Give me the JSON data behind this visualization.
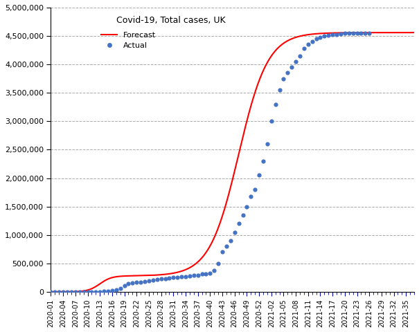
{
  "title": "Covid-19, Total cases, UK",
  "forecast_color": "#FF0000",
  "actual_color": "#4472C4",
  "background_color": "#FFFFFF",
  "grid_color": "#AAAAAA",
  "ylim": [
    0,
    5000000
  ],
  "yticks": [
    0,
    500000,
    1000000,
    1500000,
    2000000,
    2500000,
    3000000,
    3500000,
    4000000,
    4500000,
    5000000
  ],
  "xtick_labels": [
    "2020-01",
    "2020-04",
    "2020-07",
    "2020-10",
    "2020-13",
    "2020-16",
    "2020-19",
    "2020-22",
    "2020-25",
    "2020-28",
    "2020-31",
    "2020-34",
    "2020-37",
    "2020-40",
    "2020-43",
    "2020-46",
    "2020-49",
    "2020-52",
    "2021-02",
    "2021-05",
    "2021-08",
    "2021-11",
    "2021-14",
    "2021-17",
    "2021-20",
    "2021-23",
    "2021-26",
    "2021-29",
    "2021-32",
    "2021-35"
  ],
  "legend_forecast": "Forecast",
  "legend_actual": "Actual",
  "forecast_x": [
    0,
    1,
    2,
    3,
    4,
    5,
    6,
    7,
    8,
    9,
    10,
    11,
    12,
    13,
    14,
    15,
    16,
    17,
    18,
    19,
    20,
    21,
    22,
    23,
    24,
    25,
    26,
    27,
    28,
    29,
    30,
    31,
    32,
    33,
    34,
    35,
    36,
    37,
    38,
    39,
    40,
    41,
    42,
    43,
    44,
    45,
    46,
    47,
    48,
    49,
    50,
    51,
    52,
    53,
    54,
    55,
    56,
    57,
    58,
    59,
    60,
    61,
    62,
    63,
    64,
    65,
    66,
    67,
    68,
    69,
    70,
    71,
    72,
    73,
    74,
    75,
    76,
    77,
    78,
    79,
    80,
    81,
    82,
    83,
    84,
    85,
    86,
    87,
    88,
    89
  ],
  "actual_weeks": [
    0,
    1,
    2,
    3,
    4,
    5,
    6,
    7,
    8,
    9,
    10,
    11,
    12,
    13,
    14,
    15,
    16,
    17,
    18,
    19,
    20,
    21,
    22,
    23,
    24,
    25,
    26,
    27,
    28,
    29,
    30,
    31,
    32,
    33,
    34,
    35,
    36,
    37,
    38,
    39,
    40,
    41,
    42,
    43,
    44,
    45,
    46,
    47,
    48,
    49,
    50,
    51,
    52,
    53,
    54,
    55,
    56,
    57,
    58,
    59,
    60,
    61,
    62,
    63,
    64,
    65,
    66,
    67,
    68,
    69,
    70,
    71,
    72,
    73,
    74,
    75,
    76,
    77,
    78
  ],
  "actual_values": [
    2,
    3,
    5,
    10,
    20,
    50,
    100,
    200,
    350,
    500,
    800,
    1400,
    2500,
    5000,
    9000,
    17000,
    35000,
    65000,
    110000,
    140000,
    155000,
    165000,
    175000,
    180000,
    188000,
    200000,
    215000,
    225000,
    235000,
    245000,
    255000,
    260000,
    265000,
    270000,
    275000,
    285000,
    295000,
    310000,
    320000,
    330000,
    370000,
    500000,
    700000,
    800000,
    900000,
    1050000,
    1200000,
    1350000,
    1500000,
    1680000,
    1800000,
    2050000,
    2300000,
    2600000,
    3000000,
    3300000,
    3550000,
    3750000,
    3850000,
    3950000,
    4050000,
    4150000,
    4280000,
    4350000,
    4400000,
    4450000,
    4480000,
    4500000,
    4510000,
    4520000,
    4530000,
    4540000,
    4545000,
    4548000,
    4550000,
    4552000,
    4553000,
    4554000,
    4555000
  ],
  "line_width": 1.5
}
